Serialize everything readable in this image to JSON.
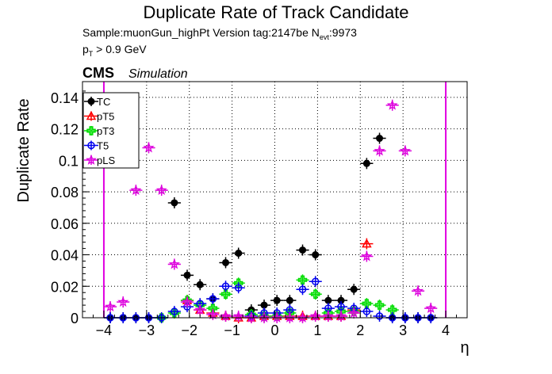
{
  "header": {
    "title": "Duplicate Rate of Track Candidate",
    "sample_text": "Sample:muonGun_highPt   Version tag:2147be  N",
    "nevt_sub": "evt",
    "nevt_value": ":9973",
    "cut_p": "p",
    "cut_sub": "T",
    "cut_rest": " > 0.9 GeV",
    "cms": "CMS",
    "simulation": "Simulation"
  },
  "chart_data": {
    "type": "scatter",
    "title": "Duplicate Rate of Track Candidate",
    "xlabel": "η",
    "ylabel": "Duplicate Rate",
    "xlim": [
      -4.5,
      4.5
    ],
    "ylim": [
      0,
      0.15
    ],
    "grid": true,
    "legend_position": "top-left",
    "x_ticks": [
      -4,
      -3,
      -2,
      -1,
      0,
      1,
      2,
      3,
      4
    ],
    "x_tick_labels": [
      "−4",
      "−3",
      "−2",
      "−1",
      "0",
      "1",
      "2",
      "3",
      "4"
    ],
    "y_ticks": [
      0,
      0.02,
      0.04,
      0.06,
      0.08,
      0.1,
      0.12,
      0.14
    ],
    "y_tick_labels": [
      "0",
      "0.02",
      "0.04",
      "0.06",
      "0.08",
      "0.1",
      "0.12",
      "0.14"
    ],
    "vertical_lines": [
      {
        "x": -4.0,
        "color": "#e000e0"
      },
      {
        "x": 4.0,
        "color": "#e000e0"
      }
    ],
    "bin_half_width": 0.15,
    "series": [
      {
        "name": "TC",
        "color": "#000000",
        "marker": "filled-circle",
        "points": [
          {
            "x": -3.85,
            "y": 0.0
          },
          {
            "x": -3.55,
            "y": 0.0
          },
          {
            "x": -3.25,
            "y": 0.0
          },
          {
            "x": -2.95,
            "y": 0.0
          },
          {
            "x": -2.65,
            "y": 0.0
          },
          {
            "x": -2.35,
            "y": 0.073
          },
          {
            "x": -2.05,
            "y": 0.027
          },
          {
            "x": -1.75,
            "y": 0.021
          },
          {
            "x": -1.45,
            "y": 0.012
          },
          {
            "x": -1.15,
            "y": 0.035
          },
          {
            "x": -0.85,
            "y": 0.041
          },
          {
            "x": -0.55,
            "y": 0.005
          },
          {
            "x": -0.25,
            "y": 0.008
          },
          {
            "x": 0.05,
            "y": 0.011
          },
          {
            "x": 0.35,
            "y": 0.011
          },
          {
            "x": 0.65,
            "y": 0.043
          },
          {
            "x": 0.95,
            "y": 0.04
          },
          {
            "x": 1.25,
            "y": 0.011
          },
          {
            "x": 1.55,
            "y": 0.011
          },
          {
            "x": 1.85,
            "y": 0.018
          },
          {
            "x": 2.15,
            "y": 0.098
          },
          {
            "x": 2.45,
            "y": 0.114
          },
          {
            "x": 2.75,
            "y": 0.0
          },
          {
            "x": 3.05,
            "y": 0.0
          },
          {
            "x": 3.35,
            "y": 0.0
          },
          {
            "x": 3.65,
            "y": 0.0
          }
        ]
      },
      {
        "name": "pT5",
        "color": "#ff0000",
        "marker": "open-triangle",
        "points": [
          {
            "x": -2.05,
            "y": 0.011
          },
          {
            "x": -1.75,
            "y": 0.005
          },
          {
            "x": -1.45,
            "y": 0.003
          },
          {
            "x": -1.15,
            "y": 0.001
          },
          {
            "x": -0.85,
            "y": 0.0
          },
          {
            "x": -0.55,
            "y": 0.0
          },
          {
            "x": -0.25,
            "y": 0.001
          },
          {
            "x": 0.05,
            "y": 0.001
          },
          {
            "x": 0.35,
            "y": 0.001
          },
          {
            "x": 0.65,
            "y": 0.001
          },
          {
            "x": 0.95,
            "y": 0.001
          },
          {
            "x": 1.25,
            "y": 0.001
          },
          {
            "x": 1.55,
            "y": 0.001
          },
          {
            "x": 1.85,
            "y": 0.005
          },
          {
            "x": 2.15,
            "y": 0.047
          }
        ]
      },
      {
        "name": "pT3",
        "color": "#00dd00",
        "marker": "open-cross",
        "points": [
          {
            "x": -2.65,
            "y": 0.0
          },
          {
            "x": -2.35,
            "y": 0.003
          },
          {
            "x": -2.05,
            "y": 0.011
          },
          {
            "x": -1.75,
            "y": 0.008
          },
          {
            "x": -1.45,
            "y": 0.006
          },
          {
            "x": -1.15,
            "y": 0.015
          },
          {
            "x": -0.85,
            "y": 0.022
          },
          {
            "x": -0.55,
            "y": 0.002
          },
          {
            "x": -0.25,
            "y": 0.001
          },
          {
            "x": 0.05,
            "y": 0.001
          },
          {
            "x": 0.35,
            "y": 0.003
          },
          {
            "x": 0.65,
            "y": 0.024
          },
          {
            "x": 0.95,
            "y": 0.015
          },
          {
            "x": 1.25,
            "y": 0.003
          },
          {
            "x": 1.55,
            "y": 0.004
          },
          {
            "x": 1.85,
            "y": 0.004
          },
          {
            "x": 2.15,
            "y": 0.009
          },
          {
            "x": 2.45,
            "y": 0.008
          },
          {
            "x": 2.75,
            "y": 0.005
          }
        ]
      },
      {
        "name": "T5",
        "color": "#0000ee",
        "marker": "open-circle",
        "points": [
          {
            "x": -3.85,
            "y": 0.0
          },
          {
            "x": -3.55,
            "y": 0.0
          },
          {
            "x": -3.25,
            "y": 0.0
          },
          {
            "x": -2.95,
            "y": 0.0
          },
          {
            "x": -2.65,
            "y": 0.0
          },
          {
            "x": -2.35,
            "y": 0.004
          },
          {
            "x": -2.05,
            "y": 0.007
          },
          {
            "x": -1.75,
            "y": 0.009
          },
          {
            "x": -1.45,
            "y": 0.012
          },
          {
            "x": -1.15,
            "y": 0.02
          },
          {
            "x": -0.85,
            "y": 0.019
          },
          {
            "x": -0.55,
            "y": 0.001
          },
          {
            "x": -0.25,
            "y": 0.003
          },
          {
            "x": 0.05,
            "y": 0.003
          },
          {
            "x": 0.35,
            "y": 0.005
          },
          {
            "x": 0.65,
            "y": 0.018
          },
          {
            "x": 0.95,
            "y": 0.023
          },
          {
            "x": 1.25,
            "y": 0.006
          },
          {
            "x": 1.55,
            "y": 0.007
          },
          {
            "x": 1.85,
            "y": 0.006
          },
          {
            "x": 2.15,
            "y": 0.004
          },
          {
            "x": 2.45,
            "y": 0.001
          },
          {
            "x": 2.75,
            "y": 0.0
          },
          {
            "x": 3.05,
            "y": 0.0
          },
          {
            "x": 3.35,
            "y": 0.0
          },
          {
            "x": 3.65,
            "y": 0.0
          }
        ]
      },
      {
        "name": "pLS",
        "color": "#dd00dd",
        "marker": "open-star",
        "points": [
          {
            "x": -3.85,
            "y": 0.007
          },
          {
            "x": -3.55,
            "y": 0.01
          },
          {
            "x": -3.25,
            "y": 0.081
          },
          {
            "x": -2.95,
            "y": 0.108
          },
          {
            "x": -2.65,
            "y": 0.081
          },
          {
            "x": -2.35,
            "y": 0.034
          },
          {
            "x": -2.05,
            "y": 0.01
          },
          {
            "x": -1.75,
            "y": 0.005
          },
          {
            "x": -1.45,
            "y": 0.002
          },
          {
            "x": -1.15,
            "y": 0.001
          },
          {
            "x": -0.85,
            "y": 0.001
          },
          {
            "x": -0.55,
            "y": 0.0
          },
          {
            "x": -0.25,
            "y": 0.0
          },
          {
            "x": 0.05,
            "y": 0.0
          },
          {
            "x": 0.35,
            "y": 0.0
          },
          {
            "x": 0.65,
            "y": 0.0
          },
          {
            "x": 0.95,
            "y": 0.001
          },
          {
            "x": 1.25,
            "y": 0.001
          },
          {
            "x": 1.55,
            "y": 0.001
          },
          {
            "x": 1.85,
            "y": 0.003
          },
          {
            "x": 2.15,
            "y": 0.039
          },
          {
            "x": 2.45,
            "y": 0.106
          },
          {
            "x": 2.75,
            "y": 0.135
          },
          {
            "x": 3.05,
            "y": 0.106
          },
          {
            "x": 3.35,
            "y": 0.017
          },
          {
            "x": 3.65,
            "y": 0.006
          }
        ]
      }
    ]
  }
}
